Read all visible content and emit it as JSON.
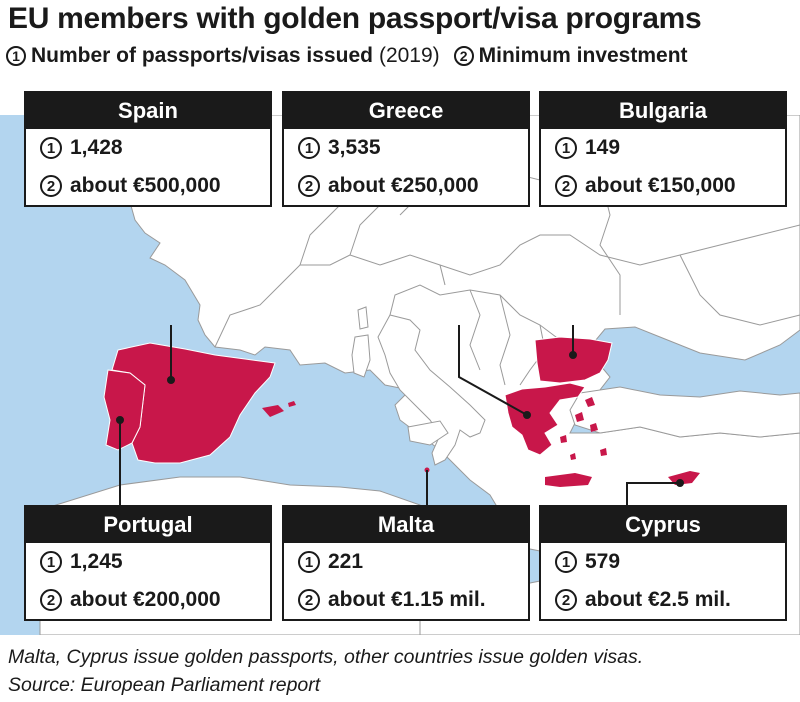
{
  "title": "EU members with golden passport/visa programs",
  "legend": {
    "item1_marker": "1",
    "item1_label": "Number of passports/visas issued",
    "item1_year": "(2019)",
    "item2_marker": "2",
    "item2_label": "Minimum investment"
  },
  "countries": [
    {
      "name": "Spain",
      "issued": "1,428",
      "investment": "about €500,000"
    },
    {
      "name": "Greece",
      "issued": "3,535",
      "investment": "about €250,000"
    },
    {
      "name": "Bulgaria",
      "issued": "149",
      "investment": "about €150,000"
    },
    {
      "name": "Portugal",
      "issued": "1,245",
      "investment": "about €200,000"
    },
    {
      "name": "Malta",
      "issued": "221",
      "investment": "about €1.15 mil."
    },
    {
      "name": "Cyprus",
      "issued": "579",
      "investment": "about €2.5 mil."
    }
  ],
  "footnote": {
    "line1": "Malta, Cyprus issue golden passports, other countries issue golden visas.",
    "line2": "Source: European Parliament report"
  },
  "colors": {
    "sea": "#b3d5ef",
    "land": "#ffffff",
    "highlight": "#c8174a",
    "border": "#9a9a9a",
    "ink": "#1a1a1a"
  }
}
